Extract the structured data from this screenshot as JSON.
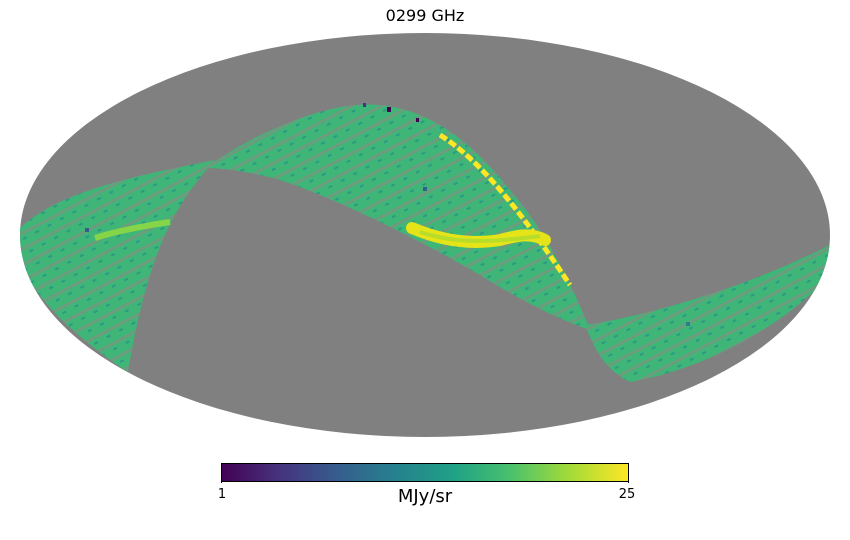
{
  "title": "0299 GHz",
  "colorbar": {
    "min_label": "1",
    "max_label": "25",
    "unit": "MJy/sr",
    "colormap": "viridis"
  },
  "colors": {
    "background_masked": "#808080",
    "band_typical": "#3fbc73",
    "band_bright": "#fde725",
    "band_dark": "#440154"
  }
}
